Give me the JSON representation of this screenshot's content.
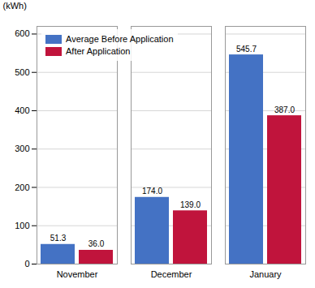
{
  "chart_data": {
    "type": "bar",
    "categories": [
      "November",
      "December",
      "January"
    ],
    "series": [
      {
        "name": "Average Before Application",
        "color": "#4472C4",
        "values": [
          51.3,
          174.0,
          545.7
        ],
        "value_labels": [
          "51.3",
          "174.0",
          "545.7"
        ]
      },
      {
        "name": "After Application",
        "color": "#C0143C",
        "values": [
          36.0,
          139.0,
          387.0
        ],
        "value_labels": [
          "36.0",
          "139.0",
          "387.0"
        ]
      }
    ],
    "ylabel": "(kWh)",
    "ylim": [
      0,
      620
    ],
    "yticks": [
      0,
      100,
      200,
      300,
      400,
      500,
      600
    ],
    "grid": true,
    "legend": "upper left",
    "data_labels": true
  }
}
